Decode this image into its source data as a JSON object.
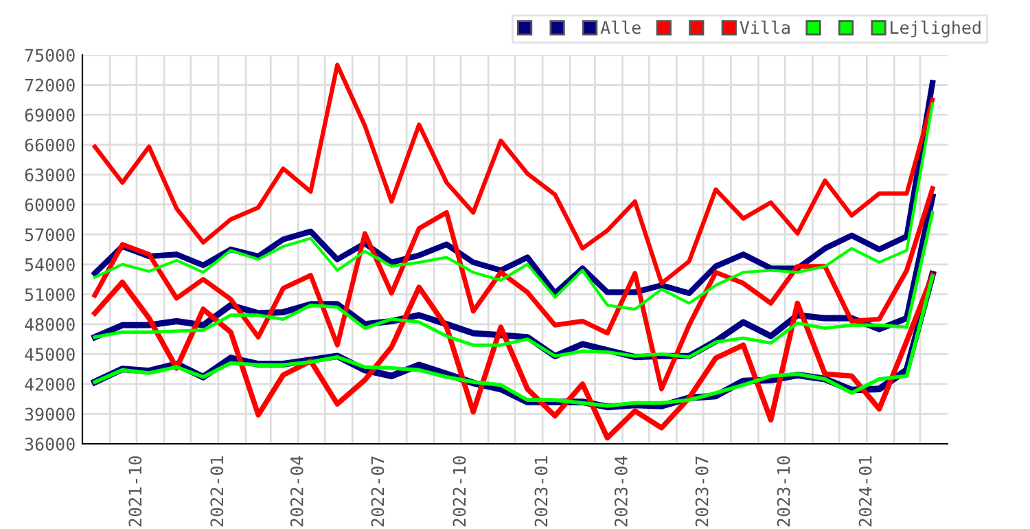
{
  "chart_data": {
    "type": "line",
    "x": [
      "2021-08-15",
      "2021-09-15",
      "2021-10-15",
      "2021-11-15",
      "2021-12-15",
      "2022-01-15",
      "2022-02-15",
      "2022-03-15",
      "2022-04-15",
      "2022-05-15",
      "2022-06-15",
      "2022-07-15",
      "2022-08-15",
      "2022-09-15",
      "2022-10-15",
      "2022-11-15",
      "2022-12-15",
      "2023-01-15",
      "2023-02-15",
      "2023-03-15",
      "2023-04-15",
      "2023-05-15",
      "2023-06-15",
      "2023-07-15",
      "2023-08-15",
      "2023-09-15",
      "2023-10-15",
      "2023-11-15",
      "2023-12-15",
      "2024-01-15",
      "2024-02-15",
      "2024-03-15"
    ],
    "series": [
      {
        "color": "#000080",
        "values": [
          42200,
          43500,
          43300,
          44000,
          42700,
          44600,
          44000,
          44000,
          44400,
          44800,
          43400,
          42800,
          43900,
          43000,
          42100,
          41500,
          40200,
          40200,
          40200,
          39700,
          39900,
          39800,
          40600,
          40800,
          42300,
          42400,
          42900,
          42500,
          41400,
          41500,
          43400,
          53000
        ]
      },
      {
        "color": "#000080",
        "values": [
          46700,
          47900,
          47900,
          48300,
          47900,
          49900,
          49100,
          49200,
          50000,
          50000,
          48000,
          48300,
          48900,
          48000,
          47100,
          46900,
          46700,
          44800,
          46000,
          45400,
          44700,
          44800,
          44800,
          46300,
          48200,
          46800,
          48900,
          48600,
          48600,
          47500,
          48600,
          60800
        ]
      },
      {
        "name": "Alle",
        "color": "#000080",
        "values": [
          53100,
          55800,
          54800,
          55000,
          53900,
          55500,
          54800,
          56500,
          57300,
          54500,
          56100,
          54200,
          54900,
          56000,
          54200,
          53400,
          54700,
          51100,
          53600,
          51200,
          51200,
          51900,
          51100,
          53800,
          55000,
          53600,
          53600,
          55600,
          56900,
          55500,
          56800,
          72200
        ]
      },
      {
        "color": "#ff0000",
        "values": [
          49100,
          52200,
          48600,
          43600,
          49500,
          47200,
          38900,
          42900,
          44300,
          40000,
          42400,
          45700,
          51700,
          47700,
          39200,
          47700,
          41500,
          38800,
          42000,
          36600,
          39300,
          37600,
          40600,
          44600,
          45900,
          38400,
          50100,
          43000,
          42800,
          39500,
          46300,
          52900
        ]
      },
      {
        "color": "#ff0000",
        "values": [
          50900,
          56000,
          55000,
          50600,
          52500,
          50500,
          46700,
          51600,
          52900,
          45900,
          57100,
          51100,
          57600,
          59200,
          49300,
          53200,
          51200,
          47900,
          48300,
          47100,
          53100,
          41500,
          47900,
          53200,
          52100,
          50100,
          53800,
          53800,
          48300,
          48500,
          53400,
          61600
        ]
      },
      {
        "name": "Villa",
        "color": "#ff0000",
        "values": [
          65800,
          62200,
          65800,
          59600,
          56200,
          58500,
          59700,
          63600,
          61300,
          74000,
          67900,
          60300,
          68000,
          62200,
          59200,
          66400,
          63100,
          61000,
          55600,
          57400,
          60300,
          52100,
          54300,
          61500,
          58600,
          60200,
          57100,
          62400,
          58900,
          61100,
          61100,
          70500
        ]
      },
      {
        "color": "#00ff00",
        "values": [
          42200,
          43400,
          43100,
          43700,
          42700,
          44100,
          43900,
          43900,
          44200,
          44700,
          43700,
          43600,
          43400,
          42700,
          42200,
          41900,
          40400,
          40400,
          40100,
          39800,
          40100,
          40100,
          40400,
          41100,
          41900,
          42800,
          43000,
          42500,
          41100,
          42500,
          42800,
          52800
        ]
      },
      {
        "color": "#00ff00",
        "values": [
          46700,
          47200,
          47200,
          47300,
          47400,
          48900,
          48900,
          48500,
          49900,
          49700,
          47600,
          48500,
          48200,
          46800,
          45900,
          45900,
          46500,
          44800,
          45300,
          45200,
          44800,
          45000,
          44700,
          46200,
          46600,
          46100,
          48100,
          47600,
          47900,
          47900,
          47700,
          59200
        ]
      },
      {
        "name": "Lejlighed",
        "color": "#00ff00",
        "values": [
          52700,
          54000,
          53300,
          54400,
          53200,
          55400,
          54500,
          55800,
          56600,
          53400,
          55300,
          53800,
          54200,
          54700,
          53200,
          52400,
          54000,
          50700,
          53400,
          49900,
          49500,
          51500,
          50100,
          51900,
          53200,
          53400,
          53200,
          53800,
          55600,
          54200,
          55400,
          70100
        ]
      }
    ],
    "xlim": [
      "2021-08-01",
      "2024-04-01"
    ],
    "xticks": [
      {
        "value": "2021-09-01",
        "label": null
      },
      {
        "value": "2021-10-01",
        "label": "2021-10"
      },
      {
        "value": "2021-11-01",
        "label": null
      },
      {
        "value": "2021-12-01",
        "label": null
      },
      {
        "value": "2022-01-01",
        "label": "2022-01"
      },
      {
        "value": "2022-02-01",
        "label": null
      },
      {
        "value": "2022-03-01",
        "label": null
      },
      {
        "value": "2022-04-01",
        "label": "2022-04"
      },
      {
        "value": "2022-05-01",
        "label": null
      },
      {
        "value": "2022-06-01",
        "label": null
      },
      {
        "value": "2022-07-01",
        "label": "2022-07"
      },
      {
        "value": "2022-08-01",
        "label": null
      },
      {
        "value": "2022-09-01",
        "label": null
      },
      {
        "value": "2022-10-01",
        "label": "2022-10"
      },
      {
        "value": "2022-11-01",
        "label": null
      },
      {
        "value": "2022-12-01",
        "label": null
      },
      {
        "value": "2023-01-01",
        "label": "2023-01"
      },
      {
        "value": "2023-02-01",
        "label": null
      },
      {
        "value": "2023-03-01",
        "label": null
      },
      {
        "value": "2023-04-01",
        "label": "2023-04"
      },
      {
        "value": "2023-05-01",
        "label": null
      },
      {
        "value": "2023-06-01",
        "label": null
      },
      {
        "value": "2023-07-01",
        "label": "2023-07"
      },
      {
        "value": "2023-08-01",
        "label": null
      },
      {
        "value": "2023-09-01",
        "label": null
      },
      {
        "value": "2023-10-01",
        "label": "2023-10"
      },
      {
        "value": "2023-11-01",
        "label": null
      },
      {
        "value": "2023-12-01",
        "label": null
      },
      {
        "value": "2024-01-01",
        "label": "2024-01"
      },
      {
        "value": "2024-02-01",
        "label": null
      },
      {
        "value": "2024-03-01",
        "label": null
      }
    ],
    "ylim": [
      36000,
      75000
    ],
    "yticks": [
      36000,
      39000,
      42000,
      45000,
      48000,
      51000,
      54000,
      57000,
      60000,
      63000,
      66000,
      69000,
      72000,
      75000
    ],
    "grid": true,
    "legend": "top right",
    "marker": "none",
    "line_style": "solid"
  }
}
